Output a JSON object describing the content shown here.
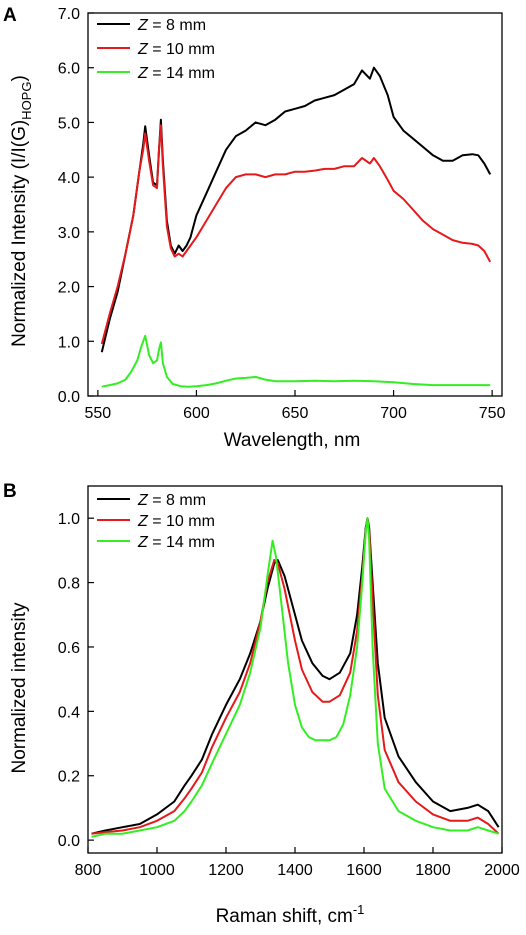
{
  "chart_data": [
    {
      "panel": "A",
      "type": "line",
      "xlabel": "Wavelength, nm",
      "ylabel": "Normalized Intensity (I/I(G)",
      "ylabel_sub": "HOPG",
      "ylabel_end": ")",
      "xlim": [
        545,
        755
      ],
      "ylim": [
        0,
        7
      ],
      "xticks": [
        550,
        600,
        650,
        700,
        750
      ],
      "xticks_labels": [
        "550",
        "600",
        "650",
        "700",
        "750"
      ],
      "yticks": [
        0,
        1,
        2,
        3,
        4,
        5,
        6,
        7
      ],
      "yticks_labels": [
        "0.0",
        "1.0",
        "2.0",
        "3.0",
        "4.0",
        "5.0",
        "6.0",
        "7.0"
      ],
      "legend_position": "top-left",
      "series": [
        {
          "name": "Z = 8 mm",
          "legend_prefix": "Z",
          "legend_suffix": " = 8 mm",
          "color": "#000000",
          "x": [
            552,
            556,
            560,
            564,
            568,
            571,
            573,
            574,
            576,
            578,
            580,
            581,
            582,
            583,
            585,
            587,
            589,
            591,
            593,
            595,
            597,
            600,
            605,
            610,
            615,
            620,
            625,
            630,
            635,
            640,
            645,
            650,
            655,
            660,
            665,
            670,
            675,
            680,
            684,
            688,
            690,
            693,
            697,
            700,
            705,
            710,
            715,
            720,
            725,
            730,
            735,
            740,
            743,
            746,
            749
          ],
          "y": [
            0.8,
            1.4,
            1.9,
            2.6,
            3.3,
            4.1,
            4.6,
            4.93,
            4.4,
            3.9,
            3.85,
            4.5,
            5.05,
            4.3,
            3.2,
            2.75,
            2.6,
            2.75,
            2.65,
            2.75,
            2.9,
            3.3,
            3.7,
            4.1,
            4.5,
            4.75,
            4.85,
            5.0,
            4.95,
            5.05,
            5.2,
            5.25,
            5.3,
            5.4,
            5.45,
            5.5,
            5.6,
            5.7,
            5.95,
            5.8,
            6.0,
            5.85,
            5.5,
            5.1,
            4.85,
            4.7,
            4.55,
            4.4,
            4.3,
            4.3,
            4.4,
            4.42,
            4.4,
            4.25,
            4.05
          ]
        },
        {
          "name": "Z = 10 mm",
          "legend_prefix": "Z",
          "legend_suffix": " = 10 mm",
          "color": "#e41a1c",
          "x": [
            552,
            556,
            560,
            564,
            568,
            571,
            573,
            574,
            576,
            578,
            580,
            581,
            582,
            583,
            585,
            587,
            589,
            591,
            593,
            595,
            597,
            600,
            605,
            610,
            615,
            620,
            625,
            630,
            635,
            640,
            645,
            650,
            655,
            660,
            665,
            670,
            675,
            680,
            684,
            688,
            690,
            693,
            697,
            700,
            705,
            710,
            715,
            720,
            725,
            730,
            735,
            740,
            743,
            746,
            749
          ],
          "y": [
            0.95,
            1.5,
            2.0,
            2.6,
            3.3,
            4.1,
            4.5,
            4.8,
            4.3,
            3.85,
            3.8,
            4.5,
            4.95,
            4.2,
            3.1,
            2.7,
            2.55,
            2.6,
            2.55,
            2.65,
            2.75,
            2.9,
            3.2,
            3.5,
            3.8,
            4.0,
            4.05,
            4.05,
            4.0,
            4.05,
            4.05,
            4.1,
            4.1,
            4.12,
            4.15,
            4.15,
            4.2,
            4.2,
            4.35,
            4.25,
            4.35,
            4.2,
            3.95,
            3.75,
            3.6,
            3.4,
            3.2,
            3.05,
            2.95,
            2.85,
            2.8,
            2.78,
            2.75,
            2.65,
            2.45
          ]
        },
        {
          "name": "Z = 14 mm",
          "legend_prefix": "Z",
          "legend_suffix": " = 14 mm",
          "color": "#33ee22",
          "x": [
            552,
            556,
            560,
            564,
            567,
            570,
            572,
            574,
            576,
            578,
            580,
            581,
            582,
            583,
            585,
            588,
            592,
            596,
            600,
            605,
            610,
            615,
            620,
            625,
            630,
            635,
            640,
            650,
            660,
            670,
            680,
            690,
            700,
            710,
            720,
            730,
            740,
            749
          ],
          "y": [
            0.17,
            0.2,
            0.23,
            0.3,
            0.45,
            0.65,
            0.9,
            1.1,
            0.75,
            0.6,
            0.65,
            0.85,
            0.98,
            0.6,
            0.35,
            0.22,
            0.18,
            0.17,
            0.18,
            0.2,
            0.23,
            0.28,
            0.32,
            0.33,
            0.35,
            0.3,
            0.27,
            0.27,
            0.28,
            0.27,
            0.28,
            0.27,
            0.25,
            0.22,
            0.2,
            0.2,
            0.2,
            0.2
          ]
        }
      ]
    },
    {
      "panel": "B",
      "type": "line",
      "xlabel": "Raman shift, cm",
      "xlabel_sup": "-1",
      "ylabel": "Normalized intensity",
      "xlim": [
        800,
        2000
      ],
      "ylim": [
        -0.04,
        1.1
      ],
      "xticks": [
        800,
        1000,
        1200,
        1400,
        1600,
        1800,
        2000
      ],
      "xticks_labels": [
        "800",
        "1000",
        "1200",
        "1400",
        "1600",
        "1800",
        "2000"
      ],
      "yticks": [
        0,
        0.2,
        0.4,
        0.6,
        0.8,
        1.0
      ],
      "yticks_labels": [
        "0.0",
        "0.2",
        "0.4",
        "0.6",
        "0.8",
        "1.0"
      ],
      "legend_position": "top-left",
      "series": [
        {
          "name": "Z = 8 mm",
          "legend_prefix": "Z",
          "legend_suffix": " = 8 mm",
          "color": "#000000",
          "x": [
            810,
            850,
            900,
            950,
            1000,
            1050,
            1080,
            1100,
            1130,
            1160,
            1200,
            1240,
            1270,
            1300,
            1320,
            1340,
            1350,
            1370,
            1400,
            1420,
            1450,
            1480,
            1500,
            1530,
            1560,
            1580,
            1595,
            1605,
            1610,
            1615,
            1625,
            1640,
            1660,
            1700,
            1750,
            1800,
            1850,
            1900,
            1930,
            1960,
            1990
          ],
          "y": [
            0.02,
            0.03,
            0.04,
            0.05,
            0.08,
            0.12,
            0.17,
            0.2,
            0.25,
            0.33,
            0.42,
            0.5,
            0.58,
            0.68,
            0.78,
            0.86,
            0.87,
            0.82,
            0.7,
            0.62,
            0.55,
            0.51,
            0.5,
            0.52,
            0.58,
            0.7,
            0.85,
            0.97,
            1.0,
            0.97,
            0.8,
            0.55,
            0.38,
            0.26,
            0.18,
            0.12,
            0.09,
            0.1,
            0.11,
            0.09,
            0.04
          ]
        },
        {
          "name": "Z = 10 mm",
          "legend_prefix": "Z",
          "legend_suffix": " = 10 mm",
          "color": "#e41a1c",
          "x": [
            810,
            850,
            900,
            950,
            1000,
            1050,
            1080,
            1100,
            1130,
            1160,
            1200,
            1240,
            1270,
            1300,
            1320,
            1340,
            1350,
            1370,
            1400,
            1420,
            1450,
            1480,
            1500,
            1530,
            1560,
            1580,
            1595,
            1605,
            1610,
            1615,
            1625,
            1640,
            1660,
            1700,
            1750,
            1800,
            1850,
            1900,
            1930,
            1960,
            1990
          ],
          "y": [
            0.02,
            0.025,
            0.03,
            0.04,
            0.06,
            0.09,
            0.13,
            0.16,
            0.21,
            0.29,
            0.38,
            0.46,
            0.55,
            0.68,
            0.8,
            0.87,
            0.86,
            0.78,
            0.62,
            0.53,
            0.46,
            0.43,
            0.43,
            0.45,
            0.52,
            0.65,
            0.82,
            0.96,
            1.0,
            0.96,
            0.75,
            0.45,
            0.28,
            0.18,
            0.12,
            0.08,
            0.06,
            0.06,
            0.07,
            0.05,
            0.02
          ]
        },
        {
          "name": "Z = 14 mm",
          "legend_prefix": "Z",
          "legend_suffix": " = 14 mm",
          "color": "#33ee22",
          "x": [
            810,
            850,
            900,
            950,
            1000,
            1050,
            1080,
            1100,
            1130,
            1160,
            1200,
            1240,
            1270,
            1300,
            1320,
            1335,
            1345,
            1360,
            1380,
            1400,
            1420,
            1440,
            1460,
            1480,
            1500,
            1520,
            1540,
            1560,
            1580,
            1595,
            1605,
            1610,
            1615,
            1625,
            1640,
            1660,
            1700,
            1750,
            1800,
            1850,
            1900,
            1930,
            1960,
            1990
          ],
          "y": [
            0.01,
            0.02,
            0.02,
            0.03,
            0.04,
            0.06,
            0.09,
            0.12,
            0.17,
            0.24,
            0.33,
            0.42,
            0.52,
            0.66,
            0.82,
            0.93,
            0.88,
            0.74,
            0.55,
            0.42,
            0.35,
            0.32,
            0.31,
            0.31,
            0.31,
            0.32,
            0.36,
            0.45,
            0.6,
            0.8,
            0.96,
            1.0,
            0.93,
            0.6,
            0.3,
            0.16,
            0.09,
            0.06,
            0.04,
            0.03,
            0.03,
            0.04,
            0.03,
            0.02
          ]
        }
      ]
    }
  ]
}
